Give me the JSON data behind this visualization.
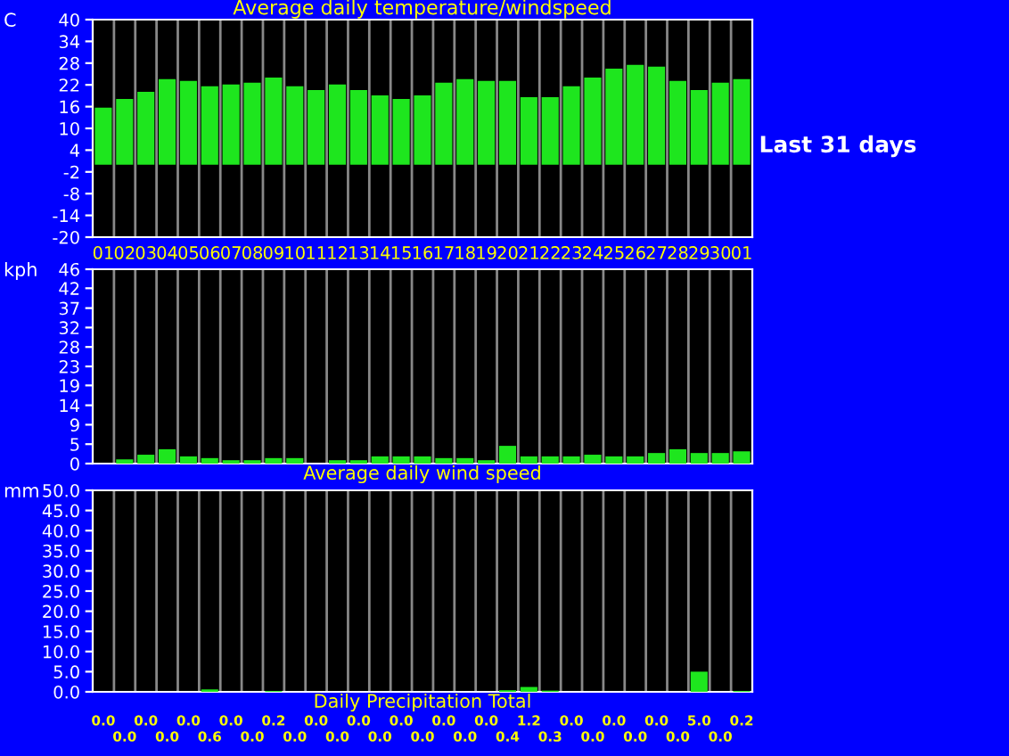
{
  "chart_data": [
    {
      "type": "bar",
      "title": "Average daily temperature/windspeed",
      "ylabel": "C",
      "categories": [
        "01",
        "02",
        "03",
        "04",
        "05",
        "06",
        "07",
        "08",
        "09",
        "10",
        "11",
        "12",
        "13",
        "14",
        "15",
        "16",
        "17",
        "18",
        "19",
        "20",
        "21",
        "22",
        "23",
        "24",
        "25",
        "26",
        "27",
        "28",
        "29",
        "30",
        "01"
      ],
      "series": [
        {
          "color": "#1ee61e",
          "values": [
            15.7,
            18.1,
            20.1,
            23.6,
            23.1,
            21.6,
            22.1,
            22.6,
            24.0,
            21.6,
            20.6,
            22.1,
            20.6,
            19.1,
            18.1,
            19.1,
            22.6,
            23.6,
            23.1,
            23.1,
            18.6,
            18.6,
            21.6,
            24.0,
            26.5,
            27.5,
            27.0,
            23.1,
            20.6,
            22.6,
            23.6
          ]
        }
      ],
      "ylim": [
        -20,
        40
      ],
      "yticks": [
        -20,
        -14,
        -8,
        -2,
        4,
        10,
        16,
        22,
        28,
        34,
        40
      ],
      "grid": "x",
      "annotations": [
        "Last 31 days"
      ]
    },
    {
      "type": "bar",
      "title": "Average daily wind speed",
      "ylabel": "kph",
      "categories": [
        "01",
        "02",
        "03",
        "04",
        "05",
        "06",
        "07",
        "08",
        "09",
        "10",
        "11",
        "12",
        "13",
        "14",
        "15",
        "16",
        "17",
        "18",
        "19",
        "20",
        "21",
        "22",
        "23",
        "24",
        "25",
        "26",
        "27",
        "28",
        "29",
        "30",
        "01"
      ],
      "series": [
        {
          "color": "#1ee61e",
          "values": [
            0,
            1.0,
            2.1,
            3.4,
            1.7,
            1.3,
            0.8,
            0.8,
            1.3,
            1.3,
            0,
            0.8,
            0.8,
            1.7,
            1.7,
            1.7,
            1.3,
            1.3,
            0.8,
            4.2,
            1.7,
            1.7,
            1.7,
            2.1,
            1.7,
            1.7,
            2.5,
            3.4,
            2.5,
            2.5,
            2.9
          ]
        }
      ],
      "ylim": [
        0,
        46
      ],
      "yticks": [
        0,
        {
          "value": 4.6,
          "label": "5"
        },
        {
          "value": 9.2,
          "label": "9"
        },
        {
          "value": 13.8,
          "label": "14"
        },
        {
          "value": 18.5,
          "label": "19"
        },
        23,
        {
          "value": 27.6,
          "label": "28"
        },
        {
          "value": 32.2,
          "label": "32"
        },
        {
          "value": 36.8,
          "label": "37"
        },
        {
          "value": 41.5,
          "label": "42"
        },
        46
      ],
      "grid": "x",
      "tick_labels": "y"
    },
    {
      "type": "bar",
      "title": "Daily Precipitation Total",
      "ylabel": "mm",
      "categories": [
        "01",
        "02",
        "03",
        "04",
        "05",
        "06",
        "07",
        "08",
        "09",
        "10",
        "11",
        "12",
        "13",
        "14",
        "15",
        "16",
        "17",
        "18",
        "19",
        "20",
        "21",
        "22",
        "23",
        "24",
        "25",
        "26",
        "27",
        "28",
        "29",
        "30",
        "01"
      ],
      "series": [
        {
          "color": "#1ee61e",
          "values": [
            0.0,
            0.0,
            0.0,
            0.0,
            0.0,
            0.6,
            0.0,
            0.0,
            0.2,
            0.0,
            0.0,
            0.0,
            0.0,
            0.0,
            0.0,
            0.0,
            0.0,
            0.0,
            0.0,
            0.4,
            1.2,
            0.3,
            0.0,
            0.0,
            0.0,
            0.0,
            0.0,
            0.0,
            5.0,
            0.0,
            0.2
          ],
          "value_labels": [
            "0.0",
            "0.0",
            "0.0",
            "0.0",
            "0.0",
            "0.6",
            "0.0",
            "0.0",
            "0.2",
            "0.0",
            "0.0",
            "0.0",
            "0.0",
            "0.0",
            "0.0",
            "0.0",
            "0.0",
            "0.0",
            "0.0",
            "0.4",
            "1.2",
            "0.3",
            "0.0",
            "0.0",
            "0.0",
            "0.0",
            "0.0",
            "0.0",
            "5.0",
            "0.0",
            "0.2"
          ]
        }
      ],
      "ylim": [
        0,
        50
      ],
      "yticks": [
        {
          "value": 0,
          "label": "0.0"
        },
        {
          "value": 5,
          "label": "5.0"
        },
        {
          "value": 10,
          "label": "10.0"
        },
        {
          "value": 15,
          "label": "15.0"
        },
        {
          "value": 20,
          "label": "20.0"
        },
        {
          "value": 25,
          "label": "25.0"
        },
        {
          "value": 30,
          "label": "30.0"
        },
        {
          "value": 35,
          "label": "35.0"
        },
        {
          "value": 40,
          "label": "40.0"
        },
        {
          "value": 45,
          "label": "45.0"
        },
        {
          "value": 50,
          "label": "50.0"
        }
      ],
      "grid": "x",
      "tick_labels": "y"
    }
  ]
}
